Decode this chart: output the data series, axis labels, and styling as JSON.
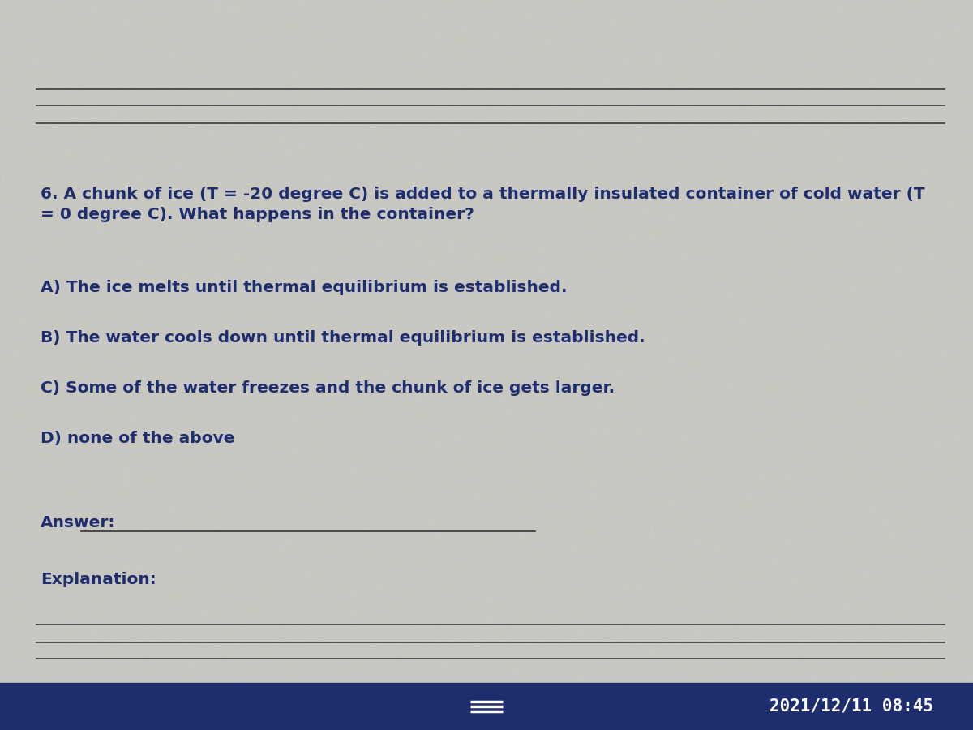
{
  "bg_color": "#c8c8c2",
  "main_text_color": "#1e2d6e",
  "taskbar_color": "#1e2d6e",
  "taskbar_text_color": "#ffffff",
  "question": "6. A chunk of ice (T = -20 degree C) is added to a thermally insulated container of cold water (T\n= 0 degree C). What happens in the container?",
  "options": [
    "A) The ice melts until thermal equilibrium is established.",
    "B) The water cools down until thermal equilibrium is established.",
    "C) Some of the water freezes and the chunk of ice gets larger.",
    "D) none of the above"
  ],
  "answer_label": "Answer:",
  "explanation_label": "Explanation:",
  "datetime_text": "2021/12/11 08:45",
  "question_fontsize": 14.5,
  "option_fontsize": 14.5,
  "label_fontsize": 14.5,
  "datetime_fontsize": 15
}
